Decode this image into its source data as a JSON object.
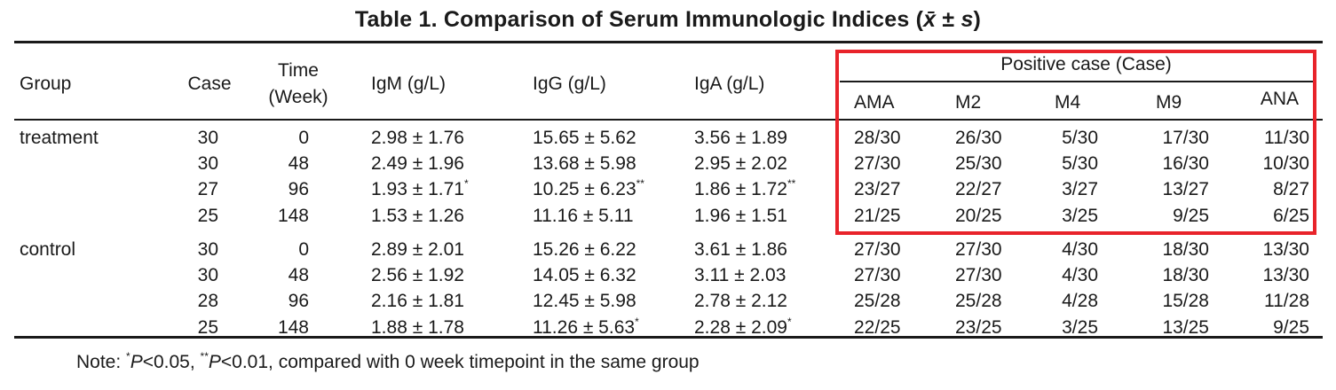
{
  "table": {
    "title": "Table 1.    Comparison of Serum Immunologic Indices (x̄ ± s)",
    "title_prefix": "Table 1.    Comparison of Serum Immunologic Indices (",
    "title_mean_symbol": "x̄",
    "title_pm": " ± ",
    "title_sd_symbol": "s",
    "title_suffix": ")",
    "headers": {
      "group": "Group",
      "case": "Case",
      "time_line1": "Time",
      "time_line2": "(Week)",
      "igm": "IgM (g/L)",
      "igg": "IgG (g/L)",
      "iga": "IgA (g/L)",
      "positive": "Positive case (Case)",
      "ama": "AMA",
      "m2": "M2",
      "m4": "M4",
      "m9": "M9",
      "ana": "ANA"
    },
    "rows": [
      {
        "group": "treatment",
        "case": "30",
        "time": "0",
        "igm": "2.98 ± 1.76",
        "igm_sig": "",
        "igg": "15.65 ± 5.62",
        "igg_sig": "",
        "iga": "3.56 ± 1.89",
        "iga_sig": "",
        "ama": "28/30",
        "m2": "26/30",
        "m4": "5/30",
        "m9": "17/30",
        "ana": "11/30"
      },
      {
        "group": "",
        "case": "30",
        "time": "48",
        "igm": "2.49 ± 1.96",
        "igm_sig": "",
        "igg": "13.68 ± 5.98",
        "igg_sig": "",
        "iga": "2.95 ± 2.02",
        "iga_sig": "",
        "ama": "27/30",
        "m2": "25/30",
        "m4": "5/30",
        "m9": "16/30",
        "ana": "10/30"
      },
      {
        "group": "",
        "case": "27",
        "time": "96",
        "igm": "1.93 ± 1.71",
        "igm_sig": "*",
        "igg": "10.25 ± 6.23",
        "igg_sig": "**",
        "iga": "1.86 ± 1.72",
        "iga_sig": "**",
        "ama": "23/27",
        "m2": "22/27",
        "m4": "3/27",
        "m9": "13/27",
        "ana": "8/27"
      },
      {
        "group": "",
        "case": "25",
        "time": "148",
        "igm": "1.53 ± 1.26",
        "igm_sig": "",
        "igg": "11.16 ± 5.11",
        "igg_sig": "",
        "iga": "1.96 ± 1.51",
        "iga_sig": "",
        "ama": "21/25",
        "m2": "20/25",
        "m4": "3/25",
        "m9": "9/25",
        "ana": "6/25"
      },
      {
        "group": "control",
        "case": "30",
        "time": "0",
        "igm": "2.89 ± 2.01",
        "igm_sig": "",
        "igg": "15.26 ± 6.22",
        "igg_sig": "",
        "iga": "3.61 ± 1.86",
        "iga_sig": "",
        "ama": "27/30",
        "m2": "27/30",
        "m4": "4/30",
        "m9": "18/30",
        "ana": "13/30"
      },
      {
        "group": "",
        "case": "30",
        "time": "48",
        "igm": "2.56 ± 1.92",
        "igm_sig": "",
        "igg": "14.05 ± 6.32",
        "igg_sig": "",
        "iga": "3.11 ± 2.03",
        "iga_sig": "",
        "ama": "27/30",
        "m2": "27/30",
        "m4": "4/30",
        "m9": "18/30",
        "ana": "13/30"
      },
      {
        "group": "",
        "case": "28",
        "time": "96",
        "igm": "2.16 ± 1.81",
        "igm_sig": "",
        "igg": "12.45 ± 5.98",
        "igg_sig": "",
        "iga": "2.78 ± 2.12",
        "iga_sig": "",
        "ama": "25/28",
        "m2": "25/28",
        "m4": "4/28",
        "m9": "15/28",
        "ana": "11/28"
      },
      {
        "group": "",
        "case": "25",
        "time": "148",
        "igm": "1.88 ± 1.78",
        "igm_sig": "",
        "igg": "11.26 ± 5.63",
        "igg_sig": "*",
        "iga": "2.28 ± 2.09",
        "iga_sig": "*",
        "ama": "22/25",
        "m2": "23/25",
        "m4": "3/25",
        "m9": "13/25",
        "ana": "9/25"
      }
    ],
    "note": {
      "prefix": "Note: ",
      "star1": "*",
      "p1": "P",
      "t1": "<0.05, ",
      "star2": "**",
      "p2": "P",
      "t2": "<0.01, compared with 0 week timepoint in the same group"
    },
    "highlight_color": "#e8232a"
  }
}
